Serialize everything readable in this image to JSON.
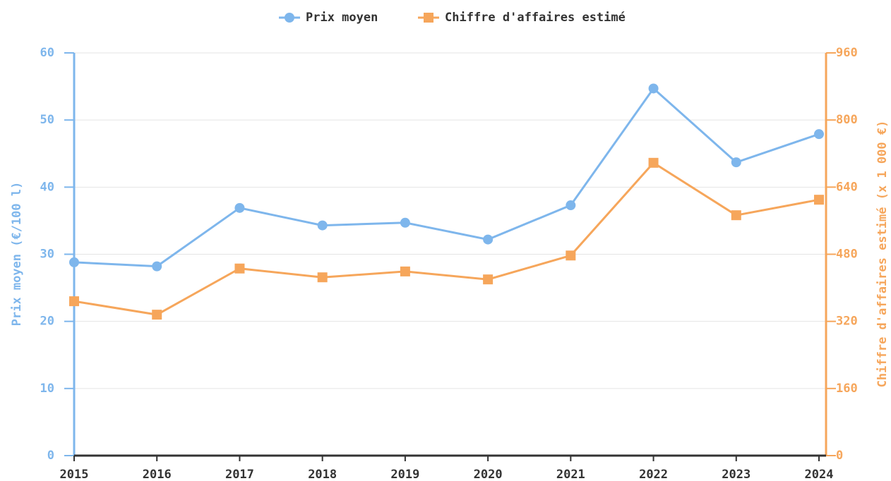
{
  "chart_data": {
    "type": "line",
    "categories": [
      "2015",
      "2016",
      "2017",
      "2018",
      "2019",
      "2020",
      "2021",
      "2022",
      "2023",
      "2024"
    ],
    "series": [
      {
        "name": "Prix moyen",
        "color": "#7eb6ec",
        "marker": "circle",
        "values": [
          28.8,
          28.2,
          36.9,
          34.3,
          34.7,
          32.2,
          37.3,
          54.7,
          43.7,
          47.9
        ]
      },
      {
        "name": "Chiffre d'affaires estimé",
        "color": "#f6a65b",
        "marker": "square",
        "axis": "y2",
        "values": [
          368,
          336,
          446,
          425,
          439,
          420,
          477,
          698,
          573,
          610
        ]
      }
    ],
    "ylabel": "Prix moyen (€/100 l)",
    "y2label": "Chiffre d'affaires estimé (x 1 000 €)",
    "ylim": [
      0,
      60
    ],
    "yticks": [
      0,
      10,
      20,
      30,
      40,
      50,
      60
    ],
    "y2lim": [
      0,
      960
    ],
    "y2ticks": [
      0,
      160,
      320,
      480,
      640,
      800,
      960
    ],
    "grid": true,
    "legend": "top"
  }
}
